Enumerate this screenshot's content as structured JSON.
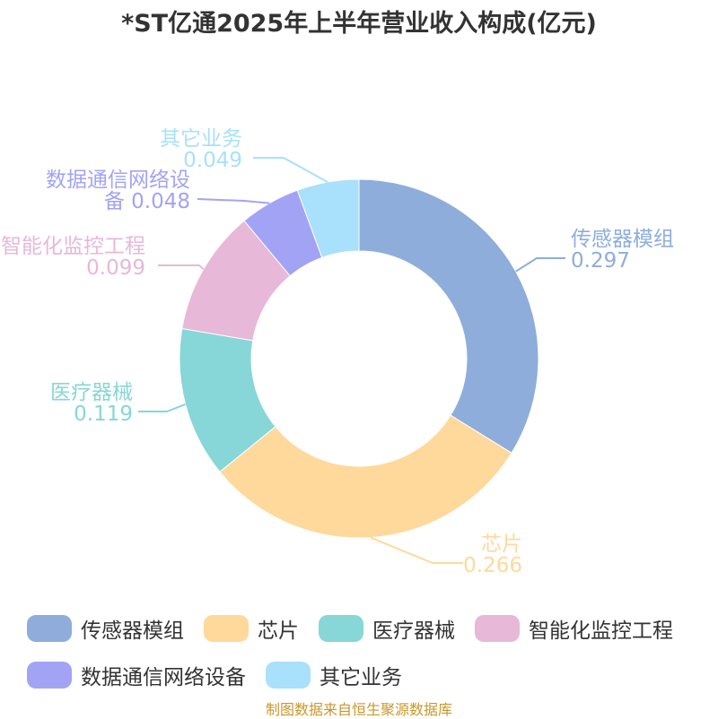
{
  "title": "*ST亿通2025年上半年营业收入构成(亿元)",
  "source": "制图数据来自恒生聚源数据库",
  "chart_data": {
    "type": "pie",
    "donut": true,
    "title": "*ST亿通2025年上半年营业收入构成(亿元)",
    "legend_position": "bottom",
    "slices": [
      {
        "name": "传感器模组",
        "value": 0.297,
        "label_lines": [
          "传感器模组",
          "0.297"
        ],
        "color": "#8eaddb"
      },
      {
        "name": "芯片",
        "value": 0.266,
        "label_lines": [
          "芯片",
          "0.266"
        ],
        "color": "#fed99b"
      },
      {
        "name": "医疗器械",
        "value": 0.119,
        "label_lines": [
          "医疗器械",
          "0.119"
        ],
        "color": "#87d6d8"
      },
      {
        "name": "智能化监控工程",
        "value": 0.099,
        "label_lines": [
          "智能化监控工程",
          "0.099"
        ],
        "color": "#e7b8d8"
      },
      {
        "name": "数据通信网络设备",
        "value": 0.048,
        "label_lines": [
          "数据通信网络设",
          "备 0.048"
        ],
        "color": "#a3a3f5"
      },
      {
        "name": "其它业务",
        "value": 0.049,
        "label_lines": [
          "其它业务",
          "0.049"
        ],
        "color": "#a9e0fb"
      }
    ]
  }
}
